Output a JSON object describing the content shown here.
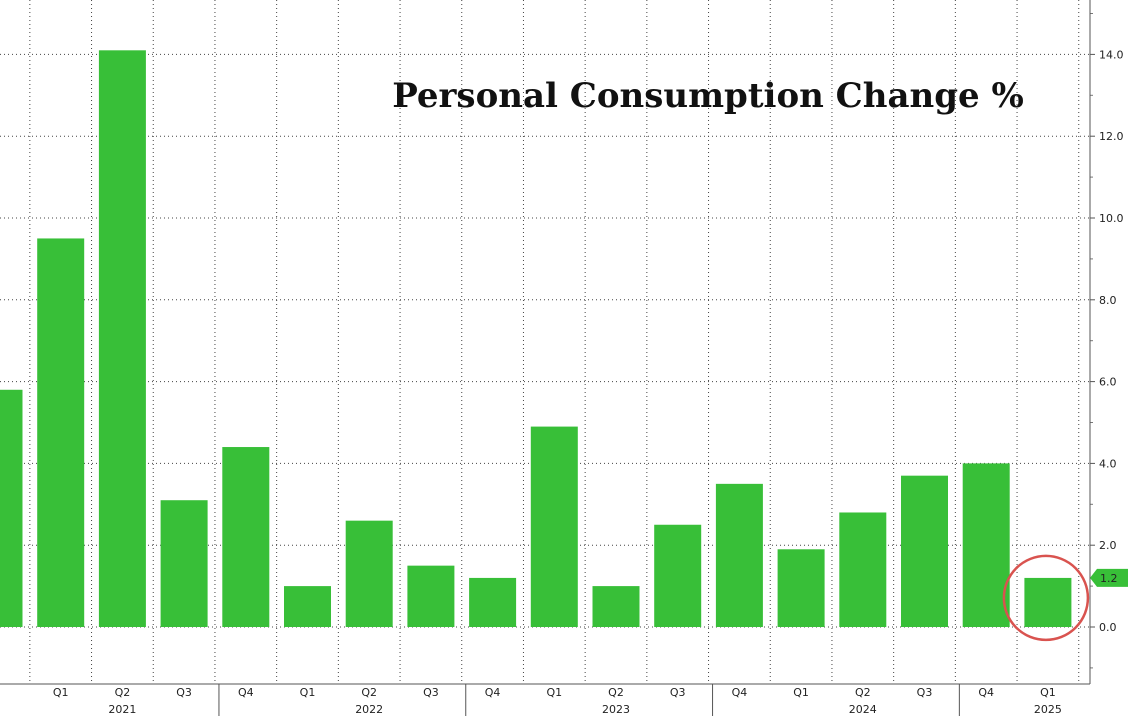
{
  "chart_data": {
    "type": "bar",
    "title": "Personal Consumption Change %",
    "categories": [
      "",
      "Q1",
      "Q2",
      "Q3",
      "Q4",
      "Q1",
      "Q2",
      "Q3",
      "Q4",
      "Q1",
      "Q2",
      "Q3",
      "Q4",
      "Q1",
      "Q2",
      "Q3",
      "Q4",
      "Q1"
    ],
    "years": [
      {
        "label": "2021",
        "under_index": 2
      },
      {
        "label": "2022",
        "under_index": 6
      },
      {
        "label": "2023",
        "under_index": 10
      },
      {
        "label": "2024",
        "under_index": 14
      },
      {
        "label": "2025",
        "under_index": 17
      }
    ],
    "values": [
      5.8,
      9.5,
      14.1,
      3.1,
      4.4,
      1.0,
      2.6,
      1.5,
      1.2,
      4.9,
      1.0,
      2.5,
      3.5,
      1.9,
      2.8,
      3.7,
      4.0,
      1.2
    ],
    "yticks": [
      "0.0",
      "2.0",
      "4.0",
      "6.0",
      "8.0",
      "10.0",
      "12.0",
      "14.0"
    ],
    "ylim": [
      -1.4,
      15.4
    ],
    "last_value_label": "1.2",
    "grid": true,
    "bar_color": "#38bf38",
    "highlight_color": "#d9534f",
    "xlabel": "",
    "ylabel": ""
  }
}
